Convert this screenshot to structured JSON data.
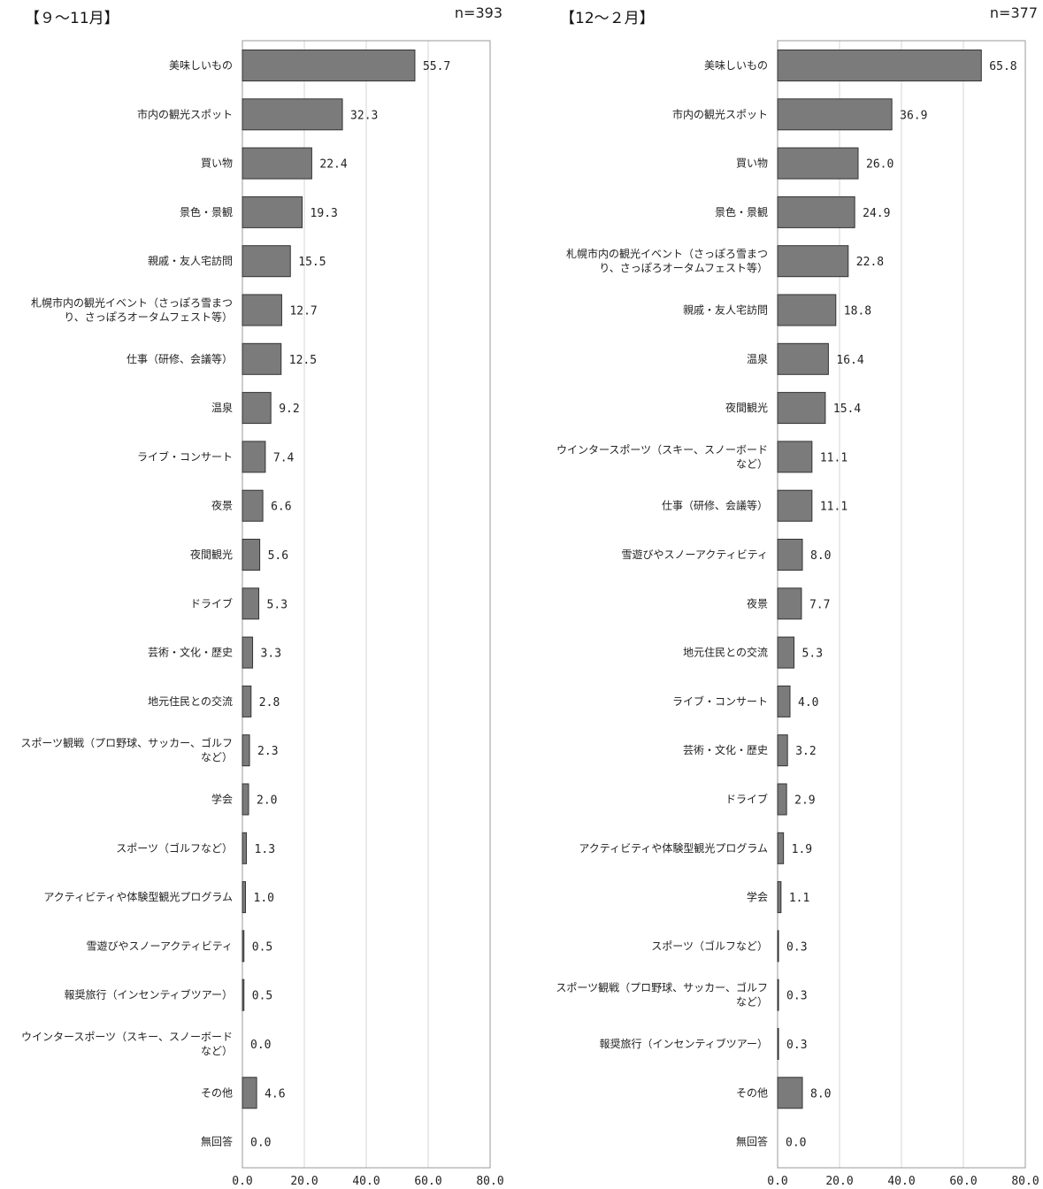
{
  "chart_data": [
    {
      "type": "bar",
      "orientation": "horizontal",
      "title": "【９～11月】",
      "n": "n=393",
      "xlim": [
        0,
        80
      ],
      "ticks": [
        "0.0",
        "20.0",
        "40.0",
        "60.0",
        "80.0"
      ],
      "grid": true,
      "categories": [
        "美味しいもの",
        "市内の観光スポット",
        "買い物",
        "景色・景観",
        "親戚・友人宅訪問",
        "札幌市内の観光イベント（さっぽろ雪まつ\nり、さっぽろオータムフェスト等）",
        "仕事（研修、会議等）",
        "温泉",
        "ライブ・コンサート",
        "夜景",
        "夜間観光",
        "ドライブ",
        "芸術・文化・歴史",
        "地元住民との交流",
        "スポーツ観戦（プロ野球、サッカー、ゴルフ\nなど）",
        "学会",
        "スポーツ（ゴルフなど）",
        "アクティビティや体験型観光プログラム",
        "雪遊びやスノーアクティビティ",
        "報奨旅行（インセンティブツアー）",
        "ウインタースポーツ（スキー、スノーボード\nなど）",
        "その他",
        "無回答"
      ],
      "values": [
        55.7,
        32.3,
        22.4,
        19.3,
        15.5,
        12.7,
        12.5,
        9.2,
        7.4,
        6.6,
        5.6,
        5.3,
        3.3,
        2.8,
        2.3,
        2.0,
        1.3,
        1.0,
        0.5,
        0.5,
        0.0,
        4.6,
        0.0
      ],
      "value_labels": [
        "55.7",
        "32.3",
        "22.4",
        "19.3",
        "15.5",
        "12.7",
        "12.5",
        "9.2",
        "7.4",
        "6.6",
        "5.6",
        "5.3",
        "3.3",
        "2.8",
        "2.3",
        "2.0",
        "1.3",
        "1.0",
        "0.5",
        "0.5",
        "0.0",
        "4.6",
        "0.0"
      ],
      "bar_color": "#7b7b7b"
    },
    {
      "type": "bar",
      "orientation": "horizontal",
      "title": "【12～２月】",
      "n": "n=377",
      "xlim": [
        0,
        80
      ],
      "ticks": [
        "0.0",
        "20.0",
        "40.0",
        "60.0",
        "80.0"
      ],
      "grid": true,
      "categories": [
        "美味しいもの",
        "市内の観光スポット",
        "買い物",
        "景色・景観",
        "札幌市内の観光イベント（さっぽろ雪まつ\nり、さっぽろオータムフェスト等）",
        "親戚・友人宅訪問",
        "温泉",
        "夜間観光",
        "ウインタースポーツ（スキー、スノーボード\nなど）",
        "仕事（研修、会議等）",
        "雪遊びやスノーアクティビティ",
        "夜景",
        "地元住民との交流",
        "ライブ・コンサート",
        "芸術・文化・歴史",
        "ドライブ",
        "アクティビティや体験型観光プログラム",
        "学会",
        "スポーツ（ゴルフなど）",
        "スポーツ観戦（プロ野球、サッカー、ゴルフ\nなど）",
        "報奨旅行（インセンティブツアー）",
        "その他",
        "無回答"
      ],
      "values": [
        65.8,
        36.9,
        26.0,
        24.9,
        22.8,
        18.8,
        16.4,
        15.4,
        11.1,
        11.1,
        8.0,
        7.7,
        5.3,
        4.0,
        3.2,
        2.9,
        1.9,
        1.1,
        0.3,
        0.3,
        0.3,
        8.0,
        0.0
      ],
      "value_labels": [
        "65.8",
        "36.9",
        "26.0",
        "24.9",
        "22.8",
        "18.8",
        "16.4",
        "15.4",
        "11.1",
        "11.1",
        "8.0",
        "7.7",
        "5.3",
        "4.0",
        "3.2",
        "2.9",
        "1.9",
        "1.1",
        "0.3",
        "0.3",
        "0.3",
        "8.0",
        "0.0"
      ],
      "bar_color": "#7b7b7b"
    }
  ]
}
